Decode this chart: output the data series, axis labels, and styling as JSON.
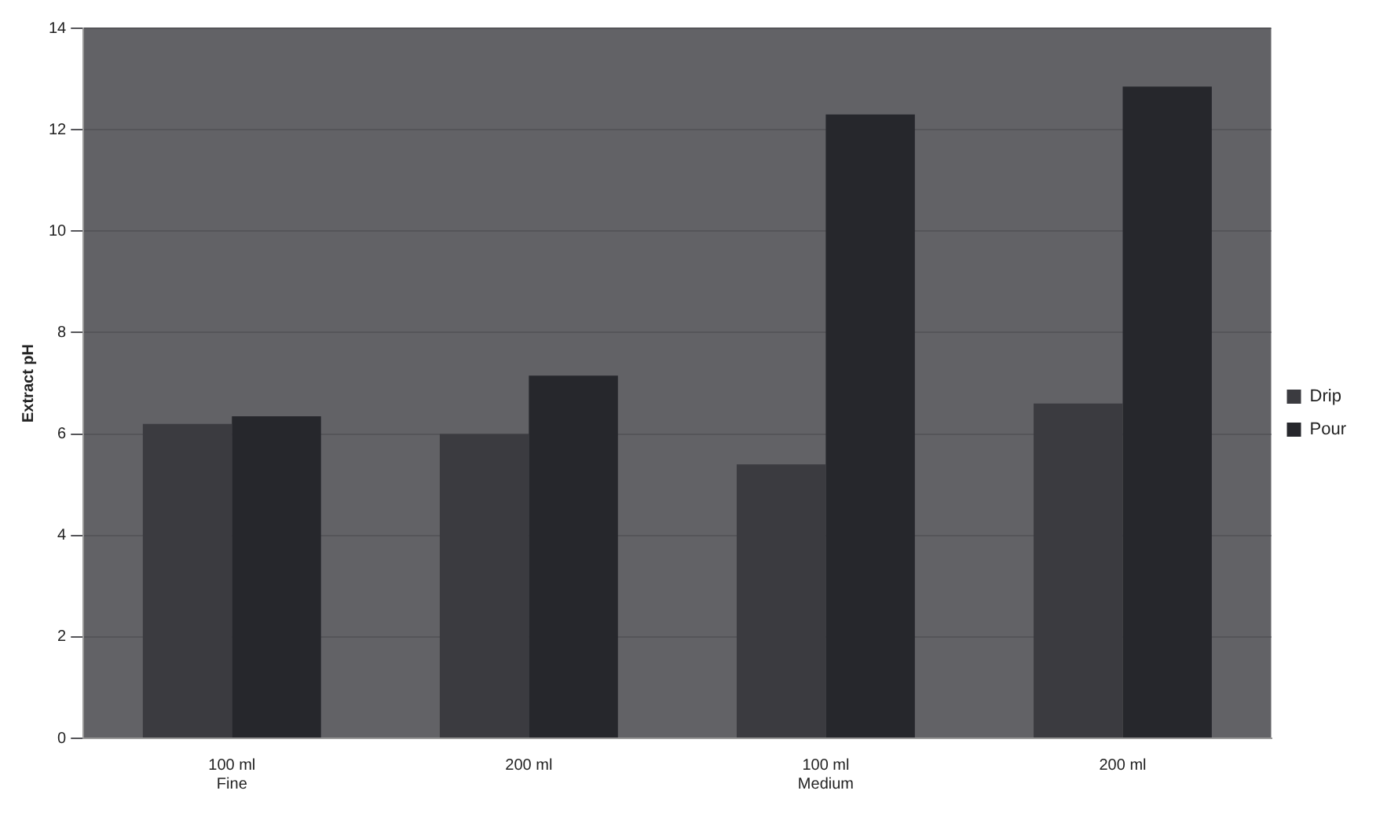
{
  "chart_data": {
    "type": "bar",
    "ylabel": "Extract pH",
    "categories": [
      "100 ml\nFine",
      "200 ml",
      "100 ml\nMedium",
      "200 ml"
    ],
    "series": [
      {
        "name": "Drip",
        "color": "#3b3b40",
        "values": [
          6.2,
          6.0,
          5.4,
          6.6
        ]
      },
      {
        "name": "Pour",
        "color": "#26272c",
        "values": [
          6.35,
          7.15,
          12.3,
          12.85
        ]
      }
    ],
    "ylim": [
      0,
      14
    ],
    "yticks": [
      0,
      2,
      4,
      6,
      8,
      10,
      12,
      14
    ],
    "grid": "y",
    "legend": "right"
  }
}
